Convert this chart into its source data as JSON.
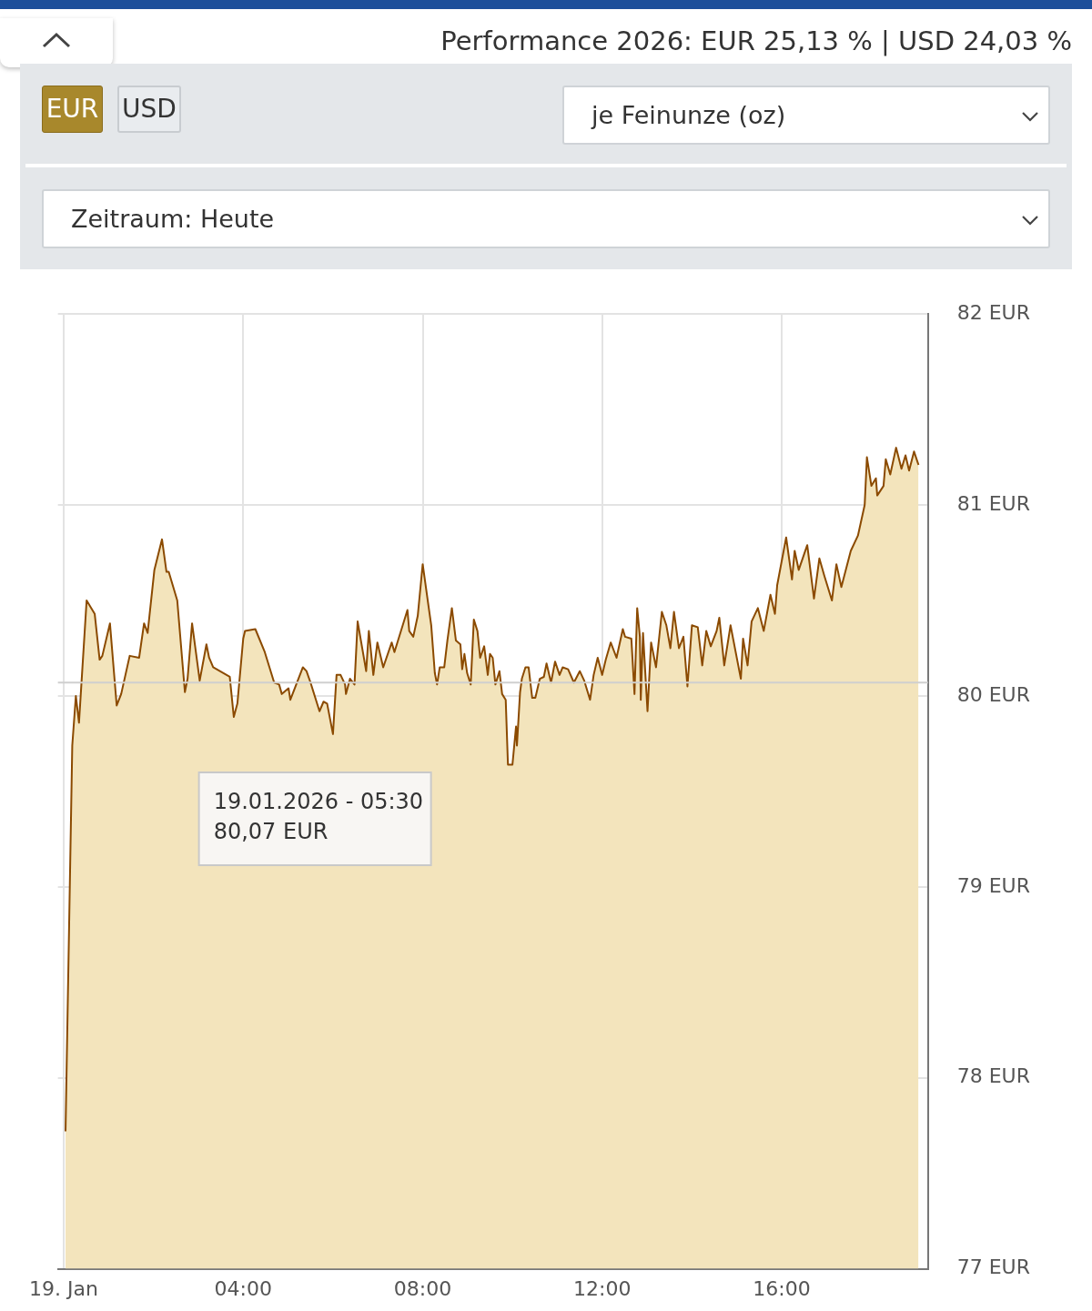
{
  "chart_data": {
    "type": "area",
    "title": "Performance 2026: EUR 25,13 % | USD 24,03 %",
    "annotations": [
      "EUR",
      "USD",
      "je Feinunze (oz)",
      "Zeitraum: Heute",
      "19.01.2026 - 05:30\n80,07 EUR"
    ],
    "xlim": [
      -0.13,
      19.26
    ],
    "xticks": [
      {
        "value": 0,
        "label": "19. Jan"
      },
      {
        "value": 4,
        "label": "04:00"
      },
      {
        "value": 8,
        "label": "08:00"
      },
      {
        "value": 12,
        "label": "12:00"
      },
      {
        "value": 16,
        "label": "16:00"
      }
    ],
    "ylim": [
      77,
      82
    ],
    "yticks": [
      {
        "value": 77,
        "label": "77 EUR"
      },
      {
        "value": 78,
        "label": "78 EUR"
      },
      {
        "value": 79,
        "label": "79 EUR"
      },
      {
        "value": 80,
        "label": "80 EUR"
      },
      {
        "value": 81,
        "label": "81 EUR"
      },
      {
        "value": 82,
        "label": "82 EUR"
      }
    ],
    "grid": true,
    "ref_lines": [
      {
        "axis": "y",
        "value": 80.07,
        "color": "#cfcfcf"
      }
    ],
    "series": [
      {
        "color": "#8b4a00",
        "x": [
          0.04,
          0.19,
          0.27,
          0.34,
          0.51,
          0.69,
          0.8,
          0.86,
          1.03,
          1.18,
          1.28,
          1.47,
          1.68,
          1.79,
          1.87,
          2.02,
          2.19,
          2.29,
          2.34,
          2.53,
          2.7,
          2.76,
          2.86,
          3.03,
          3.18,
          3.24,
          3.33,
          3.7,
          3.79,
          3.87,
          4.0,
          4.04,
          4.27,
          4.48,
          4.69,
          4.8,
          4.86,
          5.01,
          5.05,
          5.33,
          5.41,
          5.5,
          5.7,
          5.79,
          5.87,
          6.0,
          6.08,
          6.17,
          6.27,
          6.29,
          6.38,
          6.48,
          6.55,
          6.74,
          6.8,
          6.9,
          6.99,
          7.12,
          7.31,
          7.37,
          7.66,
          7.7,
          7.79,
          7.89,
          8.0,
          8.13,
          8.19,
          8.27,
          8.32,
          8.38,
          8.48,
          8.55,
          8.65,
          8.74,
          8.84,
          8.88,
          8.93,
          8.99,
          9.07,
          9.14,
          9.22,
          9.28,
          9.37,
          9.45,
          9.5,
          9.56,
          9.62,
          9.71,
          9.77,
          9.85,
          9.9,
          10.0,
          10.08,
          10.1,
          10.17,
          10.21,
          10.29,
          10.36,
          10.44,
          10.51,
          10.61,
          10.7,
          10.76,
          10.86,
          10.95,
          11.05,
          11.12,
          11.24,
          11.37,
          11.5,
          11.6,
          11.73,
          11.81,
          11.9,
          12.0,
          12.08,
          12.19,
          12.32,
          12.46,
          12.51,
          12.65,
          12.72,
          12.78,
          12.84,
          12.86,
          12.91,
          13.01,
          13.09,
          13.2,
          13.33,
          13.43,
          13.52,
          13.6,
          13.71,
          13.81,
          13.9,
          14.0,
          14.13,
          14.23,
          14.32,
          14.42,
          14.55,
          14.61,
          14.72,
          14.86,
          15.09,
          15.14,
          15.24,
          15.33,
          15.47,
          15.6,
          15.75,
          15.85,
          15.9,
          16.1,
          16.23,
          16.29,
          16.38,
          16.57,
          16.72,
          16.84,
          16.95,
          17.12,
          17.22,
          17.33,
          17.54,
          17.7,
          17.85,
          17.9,
          18.0,
          18.1,
          18.13,
          18.27,
          18.32,
          18.42,
          18.55,
          18.67,
          18.76,
          18.84,
          18.95,
          19.05
        ],
        "values": [
          77.72,
          79.74,
          80.0,
          79.86,
          80.5,
          80.43,
          80.19,
          80.21,
          80.38,
          79.95,
          80.01,
          80.21,
          80.2,
          80.38,
          80.33,
          80.66,
          80.82,
          80.65,
          80.65,
          80.5,
          80.02,
          80.09,
          80.38,
          80.08,
          80.27,
          80.2,
          80.15,
          80.1,
          79.89,
          79.96,
          80.3,
          80.34,
          80.35,
          80.23,
          80.07,
          80.06,
          80.01,
          80.04,
          79.98,
          80.15,
          80.13,
          80.07,
          79.92,
          79.97,
          79.96,
          79.8,
          80.11,
          80.11,
          80.06,
          80.01,
          80.09,
          80.06,
          80.39,
          80.13,
          80.34,
          80.11,
          80.28,
          80.15,
          80.28,
          80.23,
          80.45,
          80.34,
          80.31,
          80.42,
          80.69,
          80.47,
          80.37,
          80.12,
          80.06,
          80.15,
          80.15,
          80.29,
          80.46,
          80.29,
          80.27,
          80.14,
          80.22,
          80.12,
          80.06,
          80.4,
          80.34,
          80.2,
          80.26,
          80.11,
          80.22,
          80.2,
          80.06,
          80.13,
          80.01,
          79.98,
          79.64,
          79.64,
          79.84,
          79.74,
          80.02,
          80.09,
          80.15,
          80.15,
          79.99,
          79.99,
          80.09,
          80.1,
          80.17,
          80.07,
          80.18,
          80.11,
          80.15,
          80.14,
          80.07,
          80.13,
          80.08,
          79.98,
          80.11,
          80.2,
          80.11,
          80.19,
          80.28,
          80.2,
          80.35,
          80.31,
          80.3,
          80.01,
          80.46,
          80.31,
          79.98,
          80.33,
          79.92,
          80.28,
          80.15,
          80.44,
          80.37,
          80.25,
          80.44,
          80.25,
          80.31,
          80.05,
          80.37,
          80.36,
          80.16,
          80.34,
          80.26,
          80.34,
          80.41,
          80.16,
          80.37,
          80.09,
          80.3,
          80.16,
          80.39,
          80.46,
          80.34,
          80.53,
          80.43,
          80.58,
          80.83,
          80.61,
          80.76,
          80.66,
          80.79,
          80.51,
          80.72,
          80.63,
          80.5,
          80.69,
          80.57,
          80.76,
          80.84,
          81.0,
          81.25,
          81.1,
          81.14,
          81.05,
          81.1,
          81.24,
          81.16,
          81.3,
          81.19,
          81.26,
          81.18,
          81.28,
          81.21
        ]
      }
    ]
  }
}
